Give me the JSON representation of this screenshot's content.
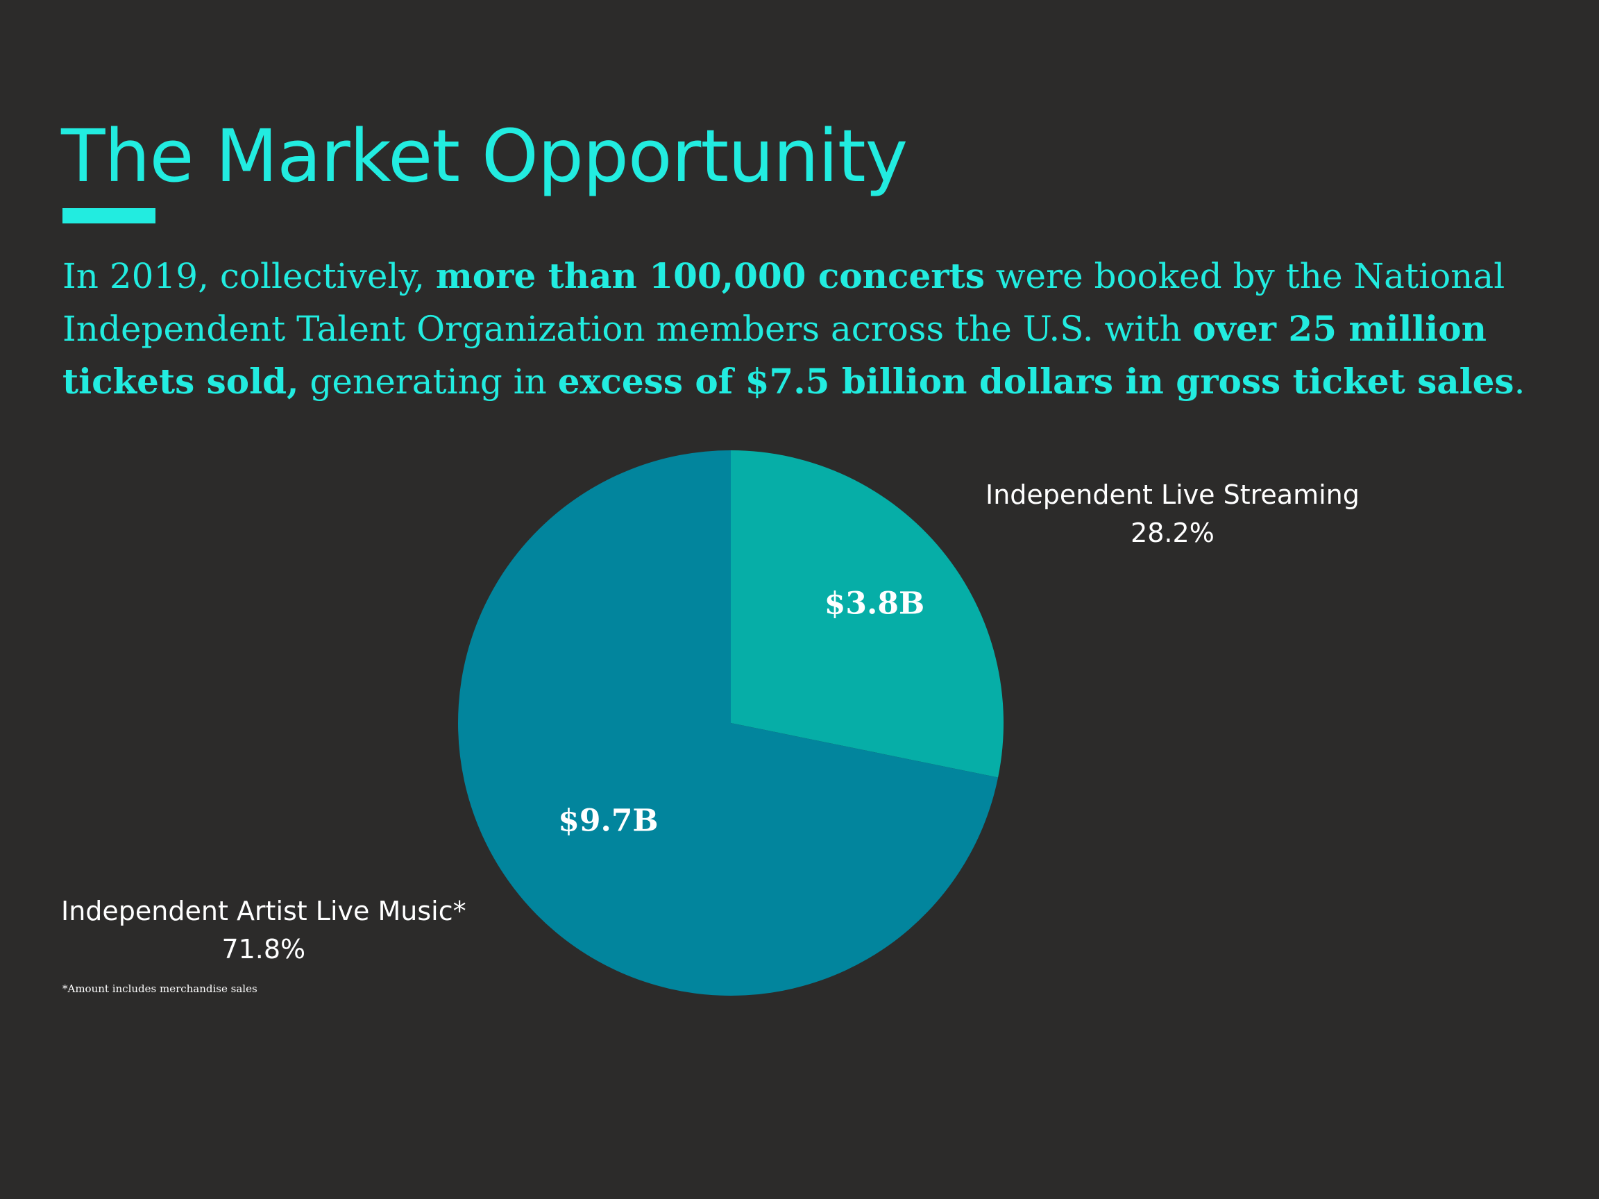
{
  "title": "The Market Opportunity",
  "intro": {
    "p1": "In 2019, collectively, ",
    "b1": "more than 100,000 concerts",
    "p2": " were booked by the National Independent Talent Organization members across the U.S. with ",
    "b2": "over 25 million tickets sold,",
    "p3": " generating in ",
    "b3": "excess of $7.5 billion dollars in gross ticket sales",
    "p4": "."
  },
  "footnote": "*Amount includes merchandise sales",
  "chart_data": {
    "type": "pie",
    "title": "",
    "start_angle_deg": 0,
    "direction": "clockwise",
    "slices": [
      {
        "label": "Independent Live Streaming",
        "value_label": "$3.8B",
        "value": 3.8,
        "percent": 28.2,
        "percent_label": "28.2%",
        "color": "#06aea7"
      },
      {
        "label": "Independent Artist Live Music*",
        "value_label": "$9.7B",
        "value": 9.7,
        "percent": 71.8,
        "percent_label": "71.8%",
        "color": "#02859d"
      }
    ]
  }
}
